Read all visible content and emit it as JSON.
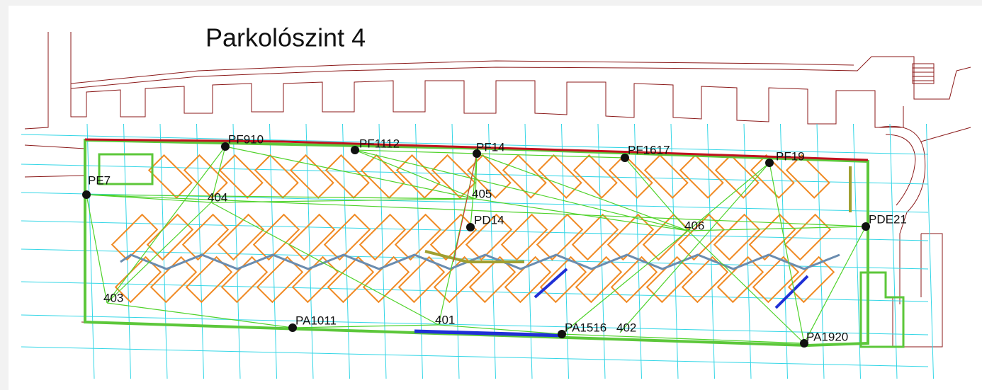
{
  "title": "Parkolószint 4",
  "nodes": [
    {
      "label": "PF910"
    },
    {
      "label": "PF1112"
    },
    {
      "label": "PF14"
    },
    {
      "label": "PF1617"
    },
    {
      "label": "PF19"
    },
    {
      "label": "PE7"
    },
    {
      "label": "404"
    },
    {
      "label": "405"
    },
    {
      "label": "PD14"
    },
    {
      "label": "406"
    },
    {
      "label": "PDE21"
    },
    {
      "label": "403"
    },
    {
      "label": "PA1011"
    },
    {
      "label": "401"
    },
    {
      "label": "PA1516"
    },
    {
      "label": "402"
    },
    {
      "label": "PA1920"
    }
  ]
}
